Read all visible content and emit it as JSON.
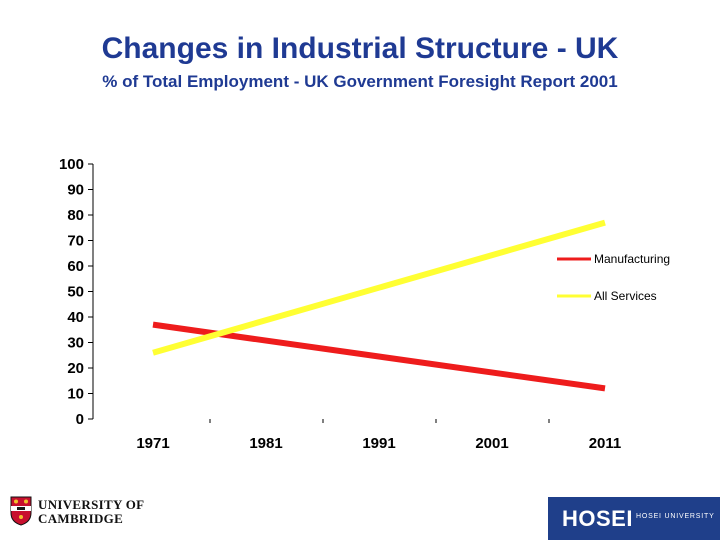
{
  "header": {
    "title": "Changes in Industrial Structure - UK",
    "subtitle": "% of Total Employment -  UK Government Foresight Report 2001"
  },
  "chart_data": {
    "type": "line",
    "title": "Changes in Industrial Structure - UK",
    "subtitle": "% of Total Employment -  UK Government Foresight Report 2001",
    "categories": [
      "1971",
      "1981",
      "1991",
      "2001",
      "2011"
    ],
    "ylim": [
      0,
      100
    ],
    "yticks": [
      0,
      10,
      20,
      30,
      40,
      50,
      60,
      70,
      80,
      90,
      100
    ],
    "grid": false,
    "legend_position": "right",
    "series": [
      {
        "name": "Manufacturing",
        "color": "#ee1c1c",
        "points": [
          [
            1971,
            37
          ],
          [
            2011,
            12
          ]
        ]
      },
      {
        "name": "All Services",
        "color": "#ffff33",
        "points": [
          [
            1971,
            26
          ],
          [
            2011,
            77
          ]
        ]
      }
    ]
  },
  "logos": {
    "left": {
      "line1": "UNIVERSITY OF",
      "line2": "CAMBRIDGE"
    },
    "right": {
      "mark": "HOSEI",
      "sub": "HOSEI UNIVERSITY"
    }
  }
}
